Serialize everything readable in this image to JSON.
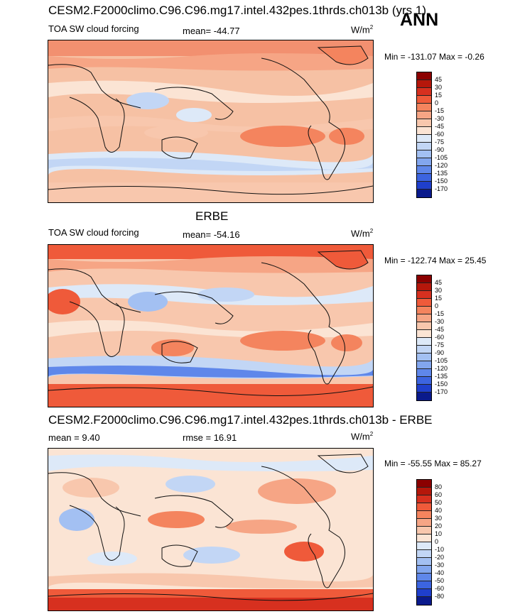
{
  "season": "ANN",
  "panels": [
    {
      "title": "CESM2.F2000climo.C96.C96.mg17.intel.432pes.1thrds.ch013b (yrs 1)",
      "left_label": "TOA SW cloud forcing",
      "center_label": "mean= -44.77",
      "units_base": "W/m",
      "units_exp": "2",
      "minmax": "Min = -131.07 Max =  -0.26"
    },
    {
      "title": "ERBE",
      "left_label": "TOA SW cloud forcing",
      "center_label": "mean= -54.16",
      "units_base": "W/m",
      "units_exp": "2",
      "minmax": "Min = -122.74 Max =  25.45"
    },
    {
      "title": "CESM2.F2000climo.C96.C96.mg17.intel.432pes.1thrds.ch013b - ERBE",
      "left_label": "mean =   9.40",
      "center_label": "rmse =  16.91",
      "units_base": "W/m",
      "units_exp": "2",
      "minmax": "Min = -55.55 Max =  85.27"
    }
  ],
  "colorbar_field": {
    "labels": [
      "45",
      "30",
      "15",
      "0",
      "-15",
      "-30",
      "-45",
      "-60",
      "-75",
      "-90",
      "-105",
      "-120",
      "-135",
      "-150",
      "-170"
    ],
    "colors": [
      "#8b0000",
      "#b5170b",
      "#d7301f",
      "#ef5a3a",
      "#f4845e",
      "#f6a585",
      "#f8c7ad",
      "#fbe4d4",
      "#dde9f8",
      "#c2d6f5",
      "#a3c0f2",
      "#82a6ee",
      "#5f87ea",
      "#3c64e0",
      "#1f3fcc",
      "#0a1a8c"
    ]
  },
  "colorbar_diff": {
    "labels": [
      "80",
      "60",
      "50",
      "40",
      "30",
      "20",
      "10",
      "0",
      "-10",
      "-20",
      "-30",
      "-40",
      "-50",
      "-60",
      "-80"
    ],
    "colors": [
      "#8b0000",
      "#b5170b",
      "#d7301f",
      "#ef5a3a",
      "#f4845e",
      "#f6a585",
      "#f8c7ad",
      "#fbe4d4",
      "#dde9f8",
      "#c2d6f5",
      "#a3c0f2",
      "#82a6ee",
      "#5f87ea",
      "#3c64e0",
      "#1f3fcc",
      "#0a1a8c"
    ]
  }
}
